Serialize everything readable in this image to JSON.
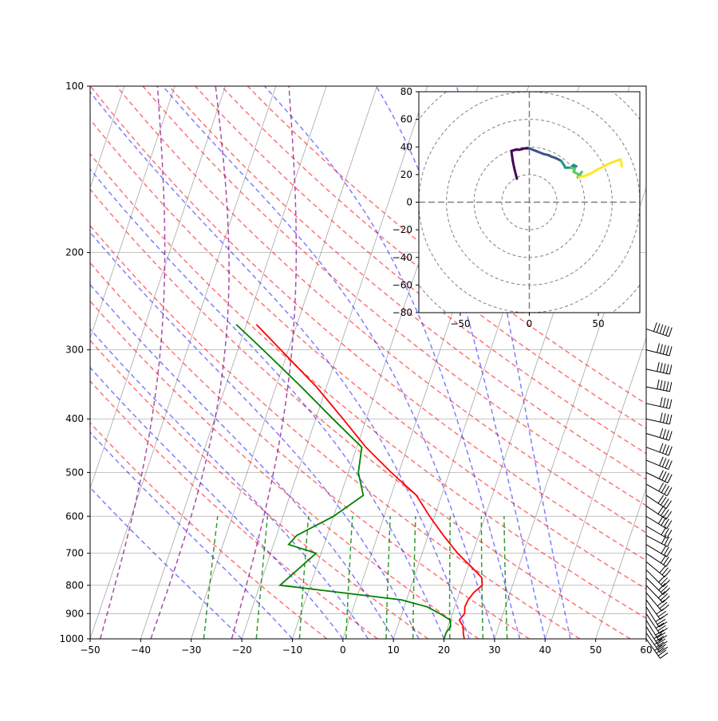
{
  "chart_data": [
    {
      "type": "skew-t",
      "title": "",
      "xlabel": "",
      "ylabel": "",
      "xlim": [
        -50,
        60
      ],
      "ylim": [
        1000,
        100
      ],
      "yscale": "log",
      "x_ticks": [
        "−50",
        "−40",
        "−30",
        "−20",
        "−10",
        "0",
        "10",
        "20",
        "30",
        "40",
        "50",
        "60"
      ],
      "y_ticks": [
        "100",
        "200",
        "300",
        "400",
        "500",
        "600",
        "700",
        "800",
        "900",
        "1000"
      ],
      "grid": true,
      "series": [
        {
          "kind": "temperature",
          "color": "#ff0000",
          "points": [
            [
              1000,
              24
            ],
            [
              975,
              23.4
            ],
            [
              950,
              23.0
            ],
            [
              925,
              21.8
            ],
            [
              900,
              22.4
            ],
            [
              875,
              22.0
            ],
            [
              850,
              22.2
            ],
            [
              825,
              22.8
            ],
            [
              800,
              24.0
            ],
            [
              775,
              23.4
            ],
            [
              750,
              21.4
            ],
            [
              700,
              17.0
            ],
            [
              650,
              13.0
            ],
            [
              600,
              9.0
            ],
            [
              550,
              5.0
            ],
            [
              500,
              -1.5
            ],
            [
              450,
              -8.2
            ],
            [
              400,
              -14.6
            ],
            [
              350,
              -22.0
            ],
            [
              300,
              -31.5
            ],
            [
              270,
              -38.0
            ]
          ]
        },
        {
          "kind": "dewpoint",
          "color": "#008000",
          "points": [
            [
              1000,
              20.0
            ],
            [
              975,
              20.0
            ],
            [
              950,
              20.5
            ],
            [
              925,
              20.0
            ],
            [
              900,
              17.5
            ],
            [
              875,
              14.5
            ],
            [
              850,
              9.0
            ],
            [
              800,
              -16.0
            ],
            [
              700,
              -11.0
            ],
            [
              675,
              -17.0
            ],
            [
              650,
              -16.0
            ],
            [
              600,
              -10.0
            ],
            [
              550,
              -5.5
            ],
            [
              500,
              -8.0
            ],
            [
              450,
              -9.0
            ],
            [
              400,
              -16.6
            ],
            [
              350,
              -25.0
            ],
            [
              300,
              -35.0
            ],
            [
              270,
              -42.0
            ]
          ]
        }
      ],
      "reference_lines": {
        "dry_adiabats": {
          "color": "#ff0000",
          "style": "dashed",
          "theta_K": [
            270,
            280,
            290,
            300,
            310,
            320,
            330,
            340,
            350,
            360,
            370,
            380,
            390,
            400,
            410,
            420
          ]
        },
        "moist_adiabats": {
          "color": "#0000ff",
          "style": "dashed",
          "T_1000_C": [
            -20,
            -10,
            0,
            5,
            10,
            15,
            20,
            25,
            30,
            35,
            40,
            45
          ]
        },
        "mixing_ratio_lines": {
          "color": "#008000",
          "style": "dashed",
          "w_gkg": [
            0.4,
            1,
            2,
            4,
            7,
            10,
            16,
            24,
            32
          ],
          "p_top": 600
        },
        "isotherms": {
          "color": "#808080",
          "style": "solid"
        },
        "zero_isotherm": {
          "color": "#800080",
          "style": "dashed"
        }
      },
      "wind_barbs": [
        {
          "p": 1000,
          "u": -25,
          "v": 35
        },
        {
          "p": 975,
          "u": -24,
          "v": 35
        },
        {
          "p": 950,
          "u": -22,
          "v": 34
        },
        {
          "p": 925,
          "u": -20,
          "v": 32
        },
        {
          "p": 900,
          "u": -20,
          "v": 30
        },
        {
          "p": 875,
          "u": -19,
          "v": 30
        },
        {
          "p": 850,
          "u": -20,
          "v": 28
        },
        {
          "p": 825,
          "u": -22,
          "v": 26
        },
        {
          "p": 800,
          "u": -24,
          "v": 25
        },
        {
          "p": 775,
          "u": -25,
          "v": 25
        },
        {
          "p": 750,
          "u": -26,
          "v": 26
        },
        {
          "p": 725,
          "u": -30,
          "v": 25
        },
        {
          "p": 700,
          "u": -30,
          "v": 20
        },
        {
          "p": 675,
          "u": -30,
          "v": 18
        },
        {
          "p": 650,
          "u": -32,
          "v": 17
        },
        {
          "p": 625,
          "u": -34,
          "v": 20
        },
        {
          "p": 600,
          "u": -36,
          "v": 22
        },
        {
          "p": 575,
          "u": -36,
          "v": 24
        },
        {
          "p": 550,
          "u": -36,
          "v": 24
        },
        {
          "p": 525,
          "u": -36,
          "v": 20
        },
        {
          "p": 500,
          "u": -37,
          "v": 18
        },
        {
          "p": 475,
          "u": -38,
          "v": 16
        },
        {
          "p": 450,
          "u": -38,
          "v": 14
        },
        {
          "p": 425,
          "u": -40,
          "v": 12
        },
        {
          "p": 400,
          "u": -45,
          "v": 10
        },
        {
          "p": 375,
          "u": -45,
          "v": 10
        },
        {
          "p": 350,
          "u": -50,
          "v": 10
        },
        {
          "p": 325,
          "u": -55,
          "v": 12
        },
        {
          "p": 300,
          "u": -55,
          "v": 14
        },
        {
          "p": 275,
          "u": -60,
          "v": 20
        }
      ]
    },
    {
      "type": "hodograph",
      "xlim": [
        -80,
        80
      ],
      "ylim": [
        -80,
        80
      ],
      "x_ticks": [
        "−50",
        "0",
        "50"
      ],
      "y_ticks": [
        "−80",
        "−60",
        "−40",
        "−20",
        "0",
        "20",
        "40",
        "60",
        "80"
      ],
      "rings": [
        20,
        40,
        60,
        80,
        100
      ],
      "colormap": "viridis",
      "points": [
        [
          -9,
          17
        ],
        [
          -11,
          25
        ],
        [
          -12,
          30
        ],
        [
          -13,
          37
        ],
        [
          -10,
          38
        ],
        [
          -7,
          38
        ],
        [
          -3,
          39
        ],
        [
          0,
          39
        ],
        [
          5,
          37
        ],
        [
          10,
          35
        ],
        [
          14,
          34
        ],
        [
          16,
          33
        ],
        [
          19,
          32
        ],
        [
          23,
          30
        ],
        [
          25,
          27
        ],
        [
          26,
          25
        ],
        [
          30,
          25
        ],
        [
          32,
          27
        ],
        [
          34,
          26
        ],
        [
          30,
          25
        ],
        [
          33,
          24
        ],
        [
          32,
          22
        ],
        [
          36,
          20
        ],
        [
          35,
          18
        ],
        [
          38,
          22
        ],
        [
          36,
          18
        ],
        [
          40,
          19
        ],
        [
          45,
          21
        ],
        [
          50,
          24
        ],
        [
          58,
          28
        ],
        [
          66,
          31
        ],
        [
          67,
          26
        ]
      ]
    }
  ]
}
